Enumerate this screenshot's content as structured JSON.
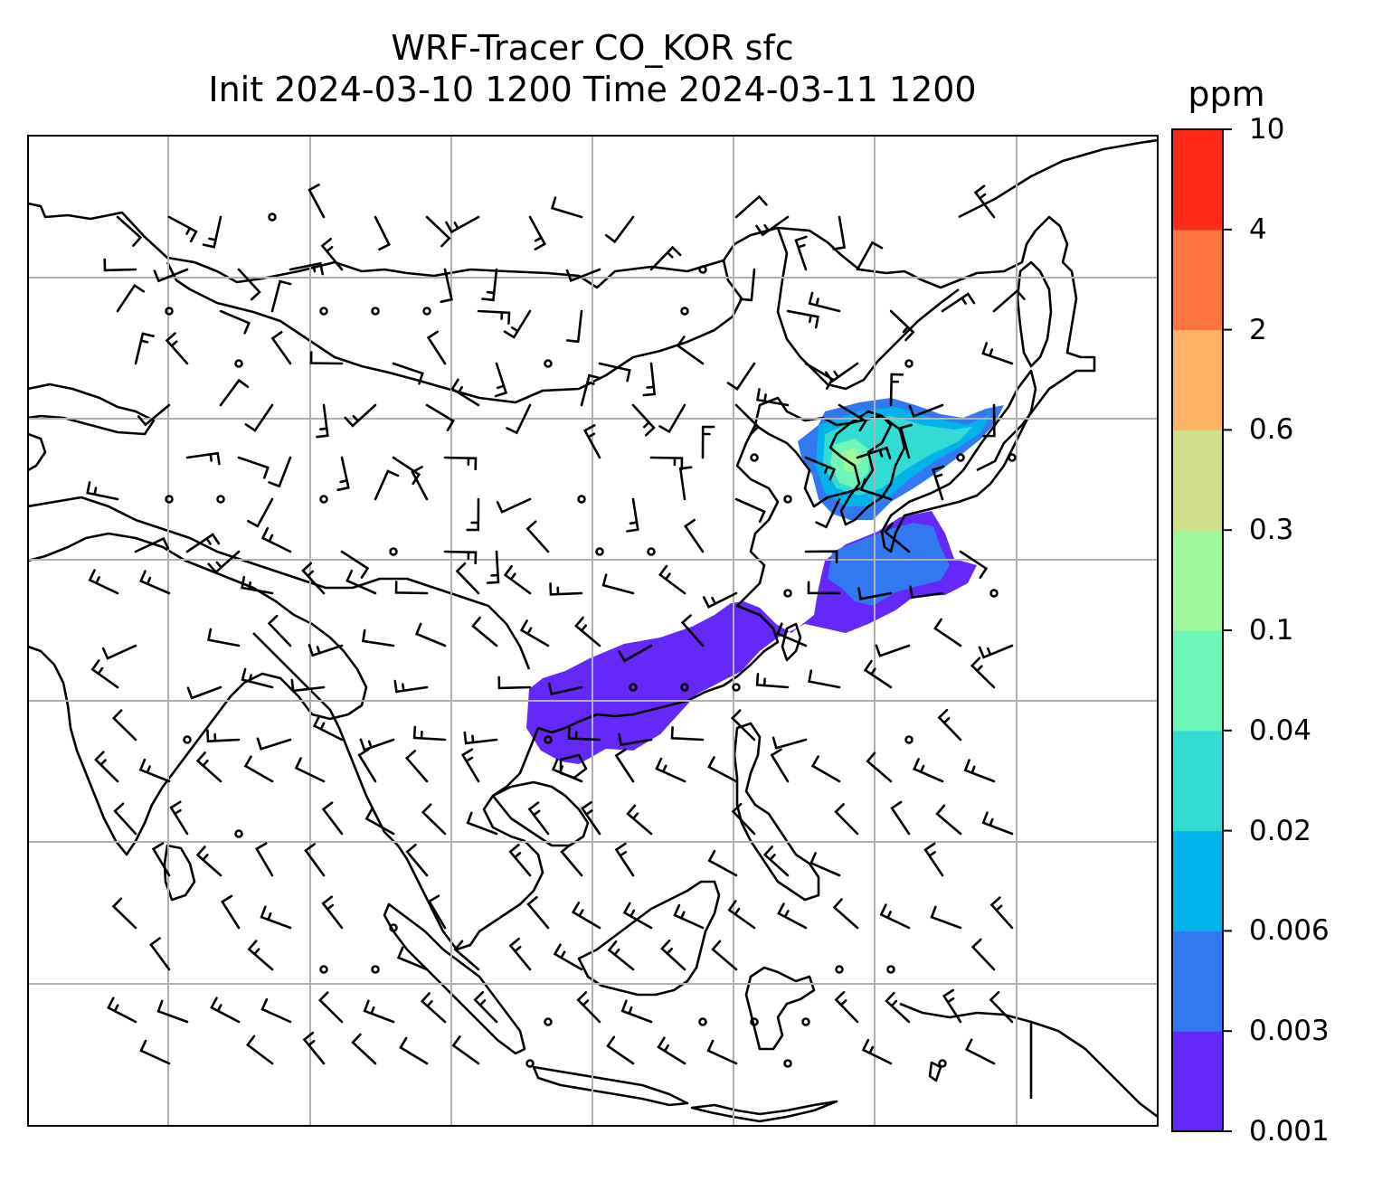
{
  "title": {
    "line1": "WRF-Tracer CO_KOR sfc",
    "line2": "Init 2024-03-10 1200 Time 2024-03-11 1200"
  },
  "colorbar": {
    "unit": "ppm",
    "levels": [
      "0.001",
      "0.003",
      "0.006",
      "0.02",
      "0.04",
      "0.1",
      "0.3",
      "0.6",
      "2",
      "4",
      "10"
    ],
    "colors": [
      "#6428fa",
      "#3278f0",
      "#00b4eb",
      "#32dcd2",
      "#6ef7b8",
      "#a0f79c",
      "#d0e08a",
      "#feb263",
      "#ff7540",
      "#ff2a19"
    ]
  },
  "map": {
    "grid": "on",
    "land_outline_color": "#000000",
    "grid_color": "#b0b0b0"
  }
}
